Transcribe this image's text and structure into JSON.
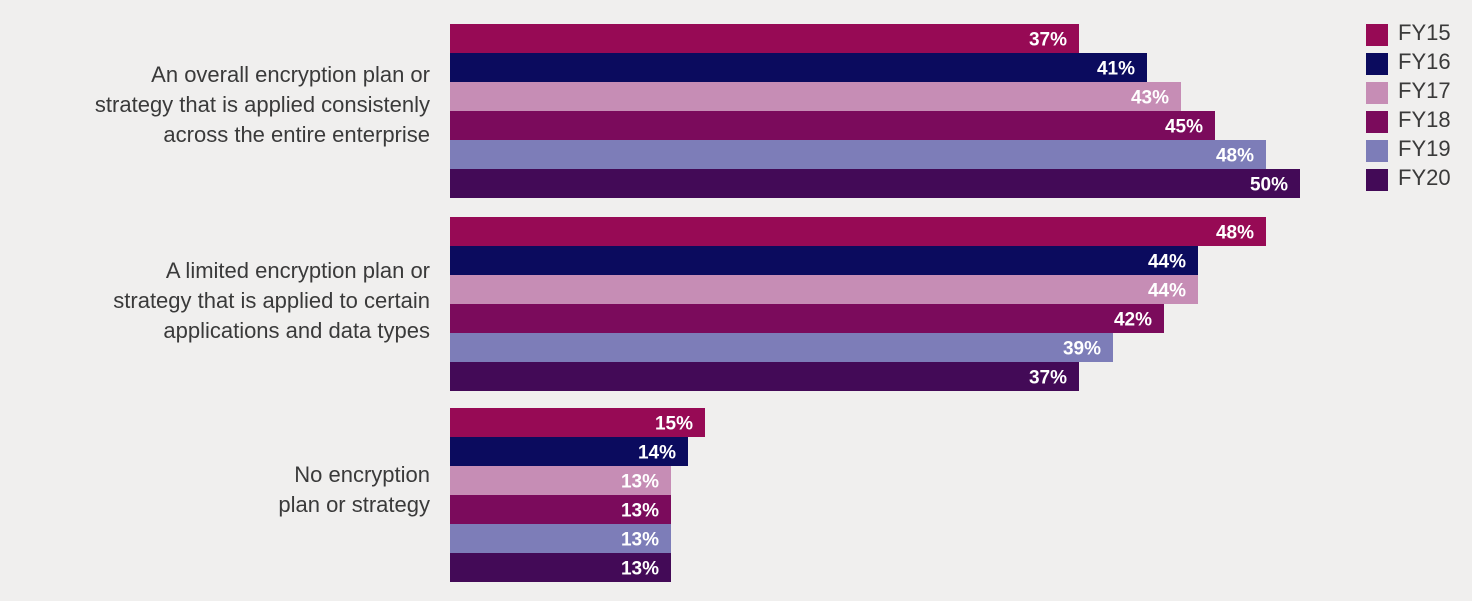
{
  "chart_data": {
    "type": "bar",
    "orientation": "horizontal",
    "categories": [
      [
        "An overall encryption plan or",
        "strategy that is applied consistenly",
        "across the entire enterprise"
      ],
      [
        "A limited encryption plan or",
        "strategy that is applied to certain",
        "applications and data types"
      ],
      [
        "No encryption",
        "plan or strategy"
      ]
    ],
    "series": [
      {
        "name": "FY15",
        "color": "#970a55",
        "values": [
          37,
          48,
          15
        ]
      },
      {
        "name": "FY16",
        "color": "#0b0b5e",
        "values": [
          41,
          44,
          14
        ]
      },
      {
        "name": "FY17",
        "color": "#c68db5",
        "values": [
          43,
          44,
          13
        ]
      },
      {
        "name": "FY18",
        "color": "#7b0b5c",
        "values": [
          45,
          42,
          13
        ]
      },
      {
        "name": "FY19",
        "color": "#7d7db8",
        "values": [
          48,
          39,
          13
        ]
      },
      {
        "name": "FY20",
        "color": "#430a57",
        "values": [
          50,
          37,
          13
        ]
      }
    ],
    "value_suffix": "%",
    "xlim": [
      0,
      50
    ],
    "grid": false,
    "legend_position": "right",
    "title": "",
    "xlabel": "",
    "ylabel": ""
  }
}
